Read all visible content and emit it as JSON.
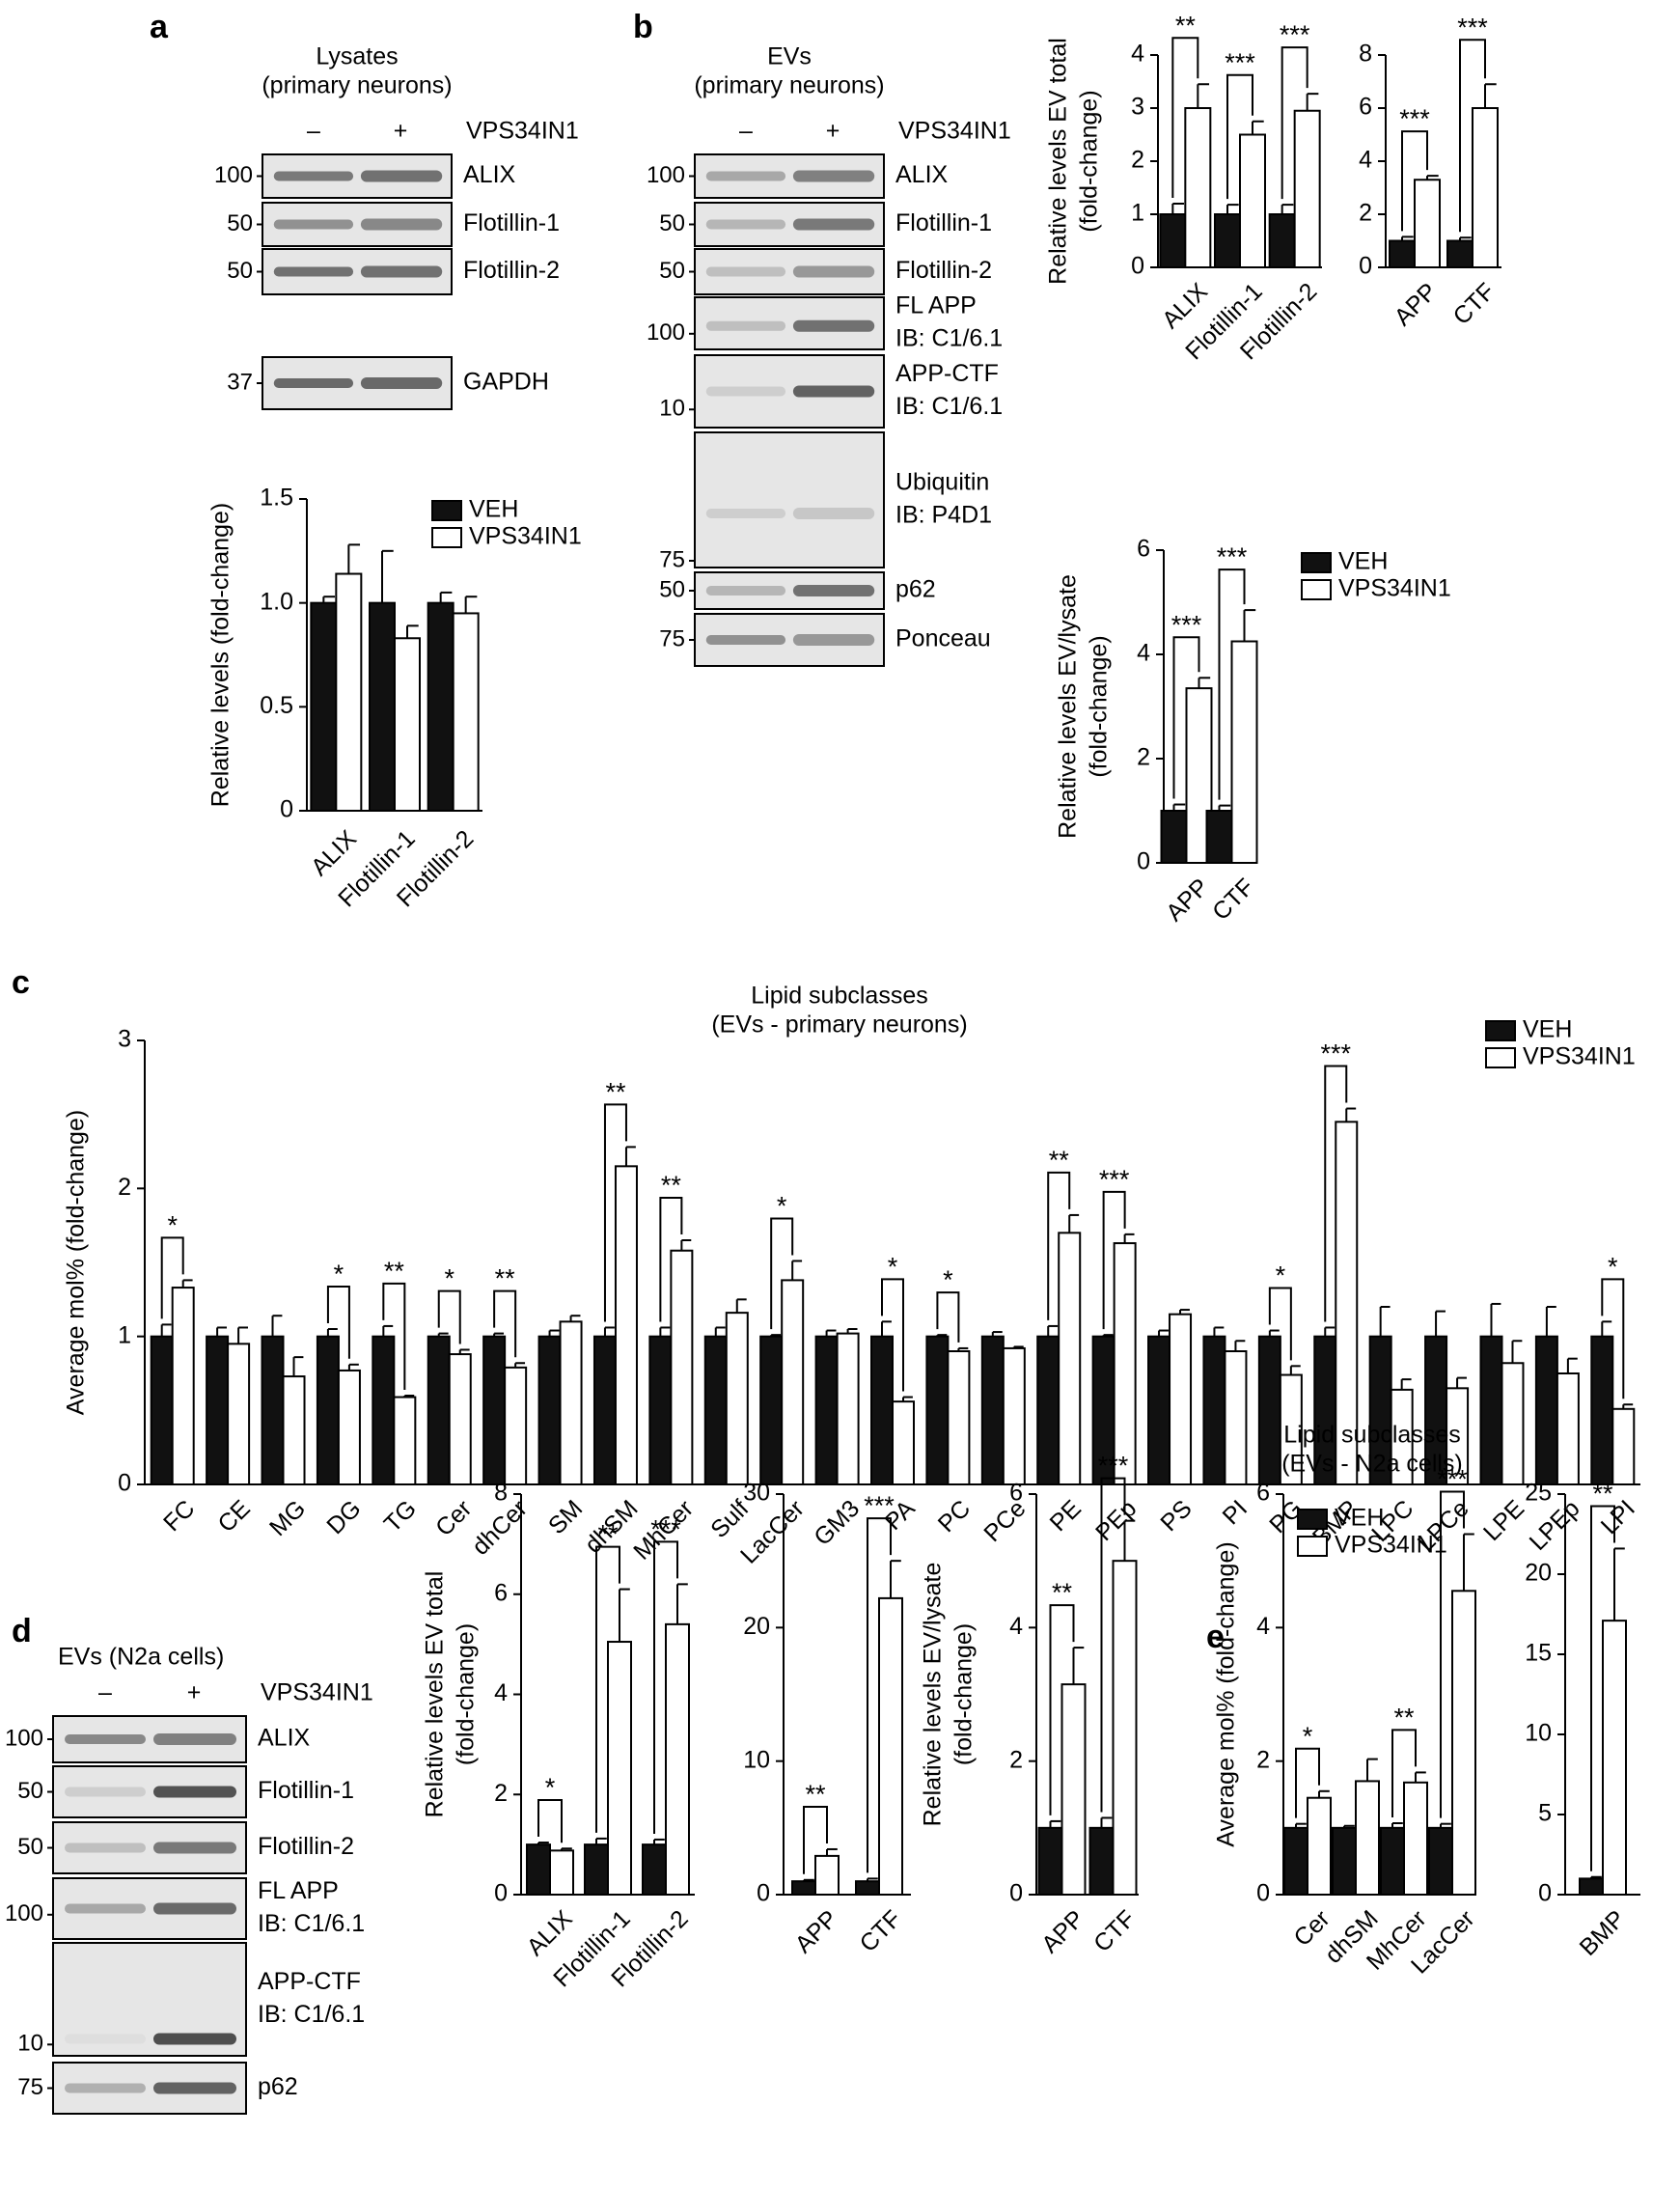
{
  "panels": {
    "a": {
      "letter": "a",
      "blot": {
        "title": [
          "Lysates",
          "(primary neurons)"
        ],
        "lanes": [
          "–",
          "+"
        ],
        "treatment": "VPS34IN1",
        "rows": [
          {
            "mw": "100",
            "label": [
              "ALIX"
            ]
          },
          {
            "mw": "50",
            "label": [
              "Flotillin-1"
            ]
          },
          {
            "mw": "50",
            "label": [
              "Flotillin-2"
            ]
          },
          {
            "mw": "37",
            "label": [
              "GAPDH"
            ]
          }
        ]
      }
    },
    "b": {
      "letter": "b",
      "blot": {
        "title": [
          "EVs",
          "(primary neurons)"
        ],
        "lanes": [
          "–",
          "+"
        ],
        "treatment": "VPS34IN1",
        "rows": [
          {
            "mw": "100",
            "label": [
              "ALIX"
            ]
          },
          {
            "mw": "50",
            "label": [
              "Flotillin-1"
            ]
          },
          {
            "mw": "50",
            "label": [
              "Flotillin-2"
            ]
          },
          {
            "mw": "100",
            "label": [
              "FL APP",
              "IB: C1/6.1"
            ]
          },
          {
            "mw": "10",
            "label": [
              "APP-CTF",
              "IB: C1/6.1"
            ]
          },
          {
            "mw": "75",
            "label": [
              "Ubiquitin",
              "IB: P4D1"
            ]
          },
          {
            "mw": "50",
            "label": [
              "p62"
            ]
          },
          {
            "mw": "75",
            "label": [
              "Ponceau"
            ]
          }
        ]
      }
    },
    "c": {
      "letter": "c"
    },
    "d": {
      "letter": "d",
      "blot": {
        "title": [
          "EVs (N2a cells)"
        ],
        "lanes": [
          "–",
          "+"
        ],
        "treatment": "VPS34IN1",
        "rows": [
          {
            "mw": "100",
            "label": [
              "ALIX"
            ]
          },
          {
            "mw": "50",
            "label": [
              "Flotillin-1"
            ]
          },
          {
            "mw": "50",
            "label": [
              "Flotillin-2"
            ]
          },
          {
            "mw": "100",
            "label": [
              "FL APP",
              "IB: C1/6.1"
            ]
          },
          {
            "mw": "10",
            "label": [
              "APP-CTF",
              "IB: C1/6.1"
            ]
          },
          {
            "mw": "75",
            "label": [
              "p62"
            ]
          }
        ]
      }
    },
    "e": {
      "letter": "e"
    }
  },
  "colors": {
    "veh": "#111111",
    "vps": "#ffffff",
    "blot_bg": "#e6e6e6",
    "band": "#4a4a4a"
  },
  "chart_data": [
    {
      "id": "a_chart",
      "type": "bar",
      "title": "",
      "xlabel": "",
      "ylabel": "Relative levels (fold-change)",
      "ylim": [
        0,
        1.5
      ],
      "yticks": [
        "0",
        "0.5",
        "1.0",
        "1.5"
      ],
      "categories": [
        "ALIX",
        "Flotillin-1",
        "Flotillin-2"
      ],
      "series": [
        {
          "name": "VEH",
          "values": [
            1.0,
            1.0,
            1.0
          ],
          "errors": [
            0.03,
            0.25,
            0.05
          ]
        },
        {
          "name": "VPS34IN1",
          "values": [
            1.14,
            0.83,
            0.95
          ],
          "errors": [
            0.14,
            0.06,
            0.08
          ]
        }
      ],
      "significance": [],
      "legend": "top-right",
      "grid": false
    },
    {
      "id": "b_chart1",
      "type": "bar",
      "title": "",
      "xlabel": "",
      "ylabel": "Relative levels EV total (fold-change)",
      "ylim": [
        0,
        4
      ],
      "yticks": [
        "0",
        "1",
        "2",
        "3",
        "4"
      ],
      "categories": [
        "ALIX",
        "Flotillin-1",
        "Flotillin-2"
      ],
      "series": [
        {
          "values": [
            1.0,
            1.0,
            1.0
          ],
          "errors": [
            0.2,
            0.18,
            0.18
          ]
        },
        {
          "values": [
            3.0,
            2.5,
            2.95
          ],
          "errors": [
            0.45,
            0.25,
            0.32
          ]
        }
      ],
      "significance": [
        "**",
        "***",
        "***"
      ],
      "grid": false
    },
    {
      "id": "b_chart2",
      "type": "bar",
      "title": "",
      "xlabel": "",
      "ylabel": "",
      "ylim": [
        0,
        8
      ],
      "yticks": [
        "0",
        "2",
        "4",
        "6",
        "8"
      ],
      "categories": [
        "APP",
        "CTF"
      ],
      "series": [
        {
          "values": [
            1.0,
            1.0
          ],
          "errors": [
            0.15,
            0.12
          ]
        },
        {
          "values": [
            3.3,
            6.0
          ],
          "errors": [
            0.15,
            0.9
          ]
        }
      ],
      "significance": [
        "***",
        "***"
      ],
      "grid": false
    },
    {
      "id": "b_chart3",
      "type": "bar",
      "title": "",
      "xlabel": "",
      "ylabel": "Relative levels EV/lysate (fold-change)",
      "ylim": [
        0,
        6
      ],
      "yticks": [
        "0",
        "2",
        "4",
        "6"
      ],
      "categories": [
        "APP",
        "CTF"
      ],
      "series": [
        {
          "name": "VEH",
          "values": [
            1.0,
            1.0
          ],
          "errors": [
            0.12,
            0.1
          ]
        },
        {
          "name": "VPS34IN1",
          "values": [
            3.35,
            4.25
          ],
          "errors": [
            0.2,
            0.6
          ]
        }
      ],
      "significance": [
        "***",
        "***"
      ],
      "legend": "top-right",
      "grid": false
    },
    {
      "id": "c_chart",
      "type": "bar",
      "title": "Lipid subclasses",
      "subtitle": "(EVs - primary neurons)",
      "xlabel": "",
      "ylabel": "Average mol% (fold-change)",
      "ylim": [
        0,
        3
      ],
      "yticks": [
        "0",
        "1",
        "2",
        "3"
      ],
      "categories": [
        "FC",
        "CE",
        "MG",
        "DG",
        "TG",
        "Cer",
        "dhCer",
        "SM",
        "dhSM",
        "MhCer",
        "Sulf",
        "LacCer",
        "GM3",
        "PA",
        "PC",
        "PCe",
        "PE",
        "PEp",
        "PS",
        "PI",
        "PG",
        "BMP",
        "LPC",
        "LPCe",
        "LPE",
        "LPEp",
        "LPI"
      ],
      "series": [
        {
          "name": "VEH",
          "values": [
            1.0,
            1.0,
            1.0,
            1.0,
            1.0,
            1.0,
            1.0,
            1.0,
            1.0,
            1.0,
            1.0,
            1.0,
            1.0,
            1.0,
            1.0,
            1.0,
            1.0,
            1.0,
            1.0,
            1.0,
            1.0,
            1.0,
            1.0,
            1.0,
            1.0,
            1.0,
            1.0
          ],
          "errors": [
            0.08,
            0.06,
            0.14,
            0.05,
            0.07,
            0.02,
            0.02,
            0.04,
            0.06,
            0.06,
            0.06,
            0.01,
            0.04,
            0.1,
            0.01,
            0.03,
            0.07,
            0.01,
            0.04,
            0.06,
            0.04,
            0.06,
            0.2,
            0.17,
            0.22,
            0.2,
            0.1
          ]
        },
        {
          "name": "VPS34IN1",
          "values": [
            1.33,
            0.95,
            0.73,
            0.77,
            0.59,
            0.88,
            0.79,
            1.1,
            2.15,
            1.58,
            1.16,
            1.38,
            1.02,
            0.56,
            0.9,
            0.92,
            1.7,
            1.63,
            1.15,
            0.9,
            0.74,
            2.45,
            0.64,
            0.65,
            0.82,
            0.75,
            0.51
          ],
          "errors": [
            0.05,
            0.11,
            0.13,
            0.04,
            0.01,
            0.03,
            0.03,
            0.04,
            0.13,
            0.07,
            0.09,
            0.13,
            0.03,
            0.03,
            0.02,
            0.01,
            0.12,
            0.06,
            0.03,
            0.07,
            0.06,
            0.09,
            0.07,
            0.07,
            0.15,
            0.1,
            0.03
          ]
        }
      ],
      "significance": [
        "*",
        "",
        "",
        "*",
        "**",
        "*",
        "**",
        "",
        "**",
        "**",
        "",
        "*",
        "",
        "*",
        "*",
        "",
        "**",
        "***",
        "",
        "",
        "*",
        "***",
        "",
        "",
        "",
        "",
        "*"
      ],
      "legend": "top-right",
      "grid": false
    },
    {
      "id": "d_chart1",
      "type": "bar",
      "title": "",
      "xlabel": "",
      "ylabel": "Relative levels EV total (fold-change)",
      "ylim": [
        0,
        8
      ],
      "yticks": [
        "0",
        "2",
        "4",
        "6",
        "8"
      ],
      "categories": [
        "ALIX",
        "Flotillin-1",
        "Flotillin-2"
      ],
      "series": [
        {
          "values": [
            1.0,
            1.0,
            1.0
          ],
          "errors": [
            0.04,
            0.12,
            0.1
          ]
        },
        {
          "values": [
            0.88,
            5.05,
            5.4
          ],
          "errors": [
            0.04,
            1.05,
            0.8
          ]
        }
      ],
      "significance": [
        "*",
        "**",
        "***"
      ],
      "grid": false
    },
    {
      "id": "d_chart2",
      "type": "bar",
      "title": "",
      "xlabel": "",
      "ylabel": "",
      "ylim": [
        0,
        30
      ],
      "yticks": [
        "0",
        "10",
        "20",
        "30"
      ],
      "categories": [
        "APP",
        "CTF"
      ],
      "series": [
        {
          "values": [
            1.0,
            1.0
          ],
          "errors": [
            0.1,
            0.2
          ]
        },
        {
          "values": [
            2.9,
            22.2
          ],
          "errors": [
            0.5,
            2.8
          ]
        }
      ],
      "significance": [
        "**",
        "***"
      ],
      "grid": false
    },
    {
      "id": "d_chart3",
      "type": "bar",
      "title": "",
      "xlabel": "",
      "ylabel": "Relative levels EV/lysate (fold-change)",
      "ylim": [
        0,
        6
      ],
      "yticks": [
        "0",
        "2",
        "4",
        "6"
      ],
      "categories": [
        "APP",
        "CTF"
      ],
      "series": [
        {
          "values": [
            1.0,
            1.0
          ],
          "errors": [
            0.1,
            0.15
          ]
        },
        {
          "values": [
            3.15,
            5.0
          ],
          "errors": [
            0.55,
            0.6
          ]
        }
      ],
      "significance": [
        "**",
        "***"
      ],
      "grid": false
    },
    {
      "id": "e_chart1",
      "type": "bar",
      "title": "Lipid subclasses",
      "subtitle": "(EVs - N2a cells)",
      "xlabel": "",
      "ylabel": "Average mol% (fold-change)",
      "ylim": [
        0,
        6
      ],
      "yticks": [
        "0",
        "2",
        "4",
        "6"
      ],
      "categories": [
        "Cer",
        "dhSM",
        "MhCer",
        "LacCer"
      ],
      "series": [
        {
          "name": "VEH",
          "values": [
            1.0,
            1.0,
            1.0,
            1.0
          ],
          "errors": [
            0.06,
            0.03,
            0.07,
            0.06
          ]
        },
        {
          "name": "VPS34IN1",
          "values": [
            1.45,
            1.7,
            1.68,
            4.55
          ],
          "errors": [
            0.1,
            0.33,
            0.15,
            0.85
          ]
        }
      ],
      "significance": [
        "*",
        "",
        "**",
        "***"
      ],
      "legend": "top-left",
      "grid": false
    },
    {
      "id": "e_chart2",
      "type": "bar",
      "title": "",
      "xlabel": "",
      "ylabel": "",
      "ylim": [
        0,
        25
      ],
      "yticks": [
        "0",
        "5",
        "10",
        "15",
        "20",
        "25"
      ],
      "categories": [
        "BMP"
      ],
      "series": [
        {
          "values": [
            1.0
          ],
          "errors": [
            0.1
          ]
        },
        {
          "values": [
            17.1
          ],
          "errors": [
            4.5
          ]
        }
      ],
      "significance": [
        "**"
      ],
      "grid": false
    }
  ]
}
